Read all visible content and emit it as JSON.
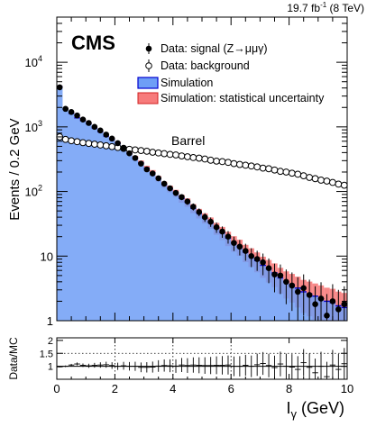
{
  "chart_data": [
    {
      "type": "histogram",
      "panel": "main",
      "title": "",
      "top_right_label": {
        "lumi": "19.7",
        "unit": "fb",
        "sup": "-1",
        "energy": "(8 TeV)"
      },
      "experiment_label": "CMS",
      "region_label": "Barrel",
      "xlabel_main": "I",
      "xlabel_sub": "γ",
      "xlabel_unit": "(GeV)",
      "ylabel": "Events / 0.2 GeV",
      "y_scale": "log",
      "xlim": [
        0,
        10
      ],
      "ylim": [
        1,
        50000
      ],
      "x_ticks": [
        "0",
        "2",
        "4",
        "6",
        "8",
        "10"
      ],
      "y_ticks": [
        {
          "value": 1,
          "label": "1"
        },
        {
          "value": 10,
          "label": "10"
        },
        {
          "value": 100,
          "label": "10",
          "exp": "2"
        },
        {
          "value": 1000,
          "label": "10",
          "exp": "3"
        },
        {
          "value": 10000,
          "label": "10",
          "exp": "4"
        }
      ],
      "legend": {
        "position": "top-right",
        "entries": [
          {
            "marker": "filled-circle",
            "label": "Data: signal (Z→μμγ)"
          },
          {
            "marker": "open-circle",
            "label": "Data: background"
          },
          {
            "marker": "blue-box",
            "label": "Simulation"
          },
          {
            "marker": "red-box",
            "label": "Simulation: statistical uncertainty"
          }
        ]
      },
      "bin_width": 0.2,
      "series": [
        {
          "name": "Simulation",
          "style": "filled-step",
          "color": "#6e9ef6",
          "line_color": "#0000d0",
          "values": [
            4200,
            1900,
            1620,
            1380,
            1250,
            1130,
            960,
            840,
            720,
            640,
            560,
            460,
            390,
            330,
            280,
            230,
            195,
            158,
            128,
            110,
            94,
            78,
            68,
            55,
            46,
            39,
            33,
            27,
            23,
            19,
            16,
            14,
            11.5,
            10,
            8.5,
            7.2,
            6.3,
            5.5,
            4.6,
            4.0,
            3.6,
            3.2,
            2.8,
            2.6,
            2.4,
            2.2,
            2.0,
            1.9,
            1.7,
            1.6
          ],
          "uncertainty_frac": [
            0.03,
            0.04,
            0.04,
            0.04,
            0.04,
            0.05,
            0.05,
            0.05,
            0.06,
            0.06,
            0.06,
            0.07,
            0.07,
            0.08,
            0.08,
            0.09,
            0.1,
            0.1,
            0.11,
            0.12,
            0.13,
            0.14,
            0.15,
            0.16,
            0.17,
            0.18,
            0.2,
            0.21,
            0.23,
            0.25,
            0.27,
            0.28,
            0.3,
            0.32,
            0.34,
            0.36,
            0.38,
            0.4,
            0.43,
            0.45,
            0.47,
            0.5,
            0.53,
            0.55,
            0.57,
            0.6,
            0.62,
            0.64,
            0.66,
            0.68
          ]
        },
        {
          "name": "Data: signal (Z→μμγ)",
          "style": "filled-circle",
          "color": "#000000",
          "values": [
            4100,
            1900,
            1700,
            1500,
            1300,
            1150,
            1000,
            880,
            760,
            660,
            560,
            470,
            390,
            330,
            270,
            220,
            190,
            160,
            132,
            112,
            95,
            82,
            70,
            58,
            48,
            40,
            34,
            28,
            24,
            20,
            16,
            14,
            12,
            10,
            9,
            8,
            6.5,
            5.2,
            5,
            4,
            3.5,
            2.8,
            3.2,
            2.5,
            1.8,
            2.2,
            1.2,
            2.0,
            1.5,
            1.8
          ]
        },
        {
          "name": "Data: background",
          "style": "open-circle",
          "color": "#000000",
          "values": [
            700,
            640,
            610,
            590,
            570,
            555,
            540,
            525,
            510,
            495,
            480,
            465,
            450,
            440,
            430,
            420,
            405,
            395,
            385,
            375,
            368,
            355,
            345,
            335,
            328,
            318,
            305,
            295,
            290,
            282,
            270,
            262,
            255,
            248,
            240,
            230,
            225,
            215,
            205,
            200,
            192,
            185,
            175,
            165,
            158,
            150,
            145,
            138,
            130,
            125
          ]
        }
      ]
    },
    {
      "type": "scatter",
      "panel": "ratio",
      "ylabel": "Data/MC",
      "xlim": [
        0,
        10
      ],
      "ylim": [
        0.5,
        2.1
      ],
      "y_ticks": [
        "1",
        "1.5",
        "2"
      ],
      "x_ticks": [
        "0",
        "2",
        "4",
        "6",
        "8",
        "10"
      ],
      "reference_line": 1,
      "dotted_lines_y": [
        1.5
      ],
      "dotted_lines_x": [
        2,
        4,
        6
      ],
      "values": [
        0.98,
        1.0,
        1.05,
        1.09,
        1.04,
        1.02,
        1.04,
        1.05,
        1.06,
        1.03,
        1.0,
        1.02,
        1.0,
        1.0,
        0.96,
        0.96,
        0.97,
        1.01,
        1.03,
        1.02,
        1.01,
        1.05,
        1.03,
        1.05,
        1.04,
        1.03,
        1.03,
        1.04,
        1.04,
        1.05,
        1.0,
        1.0,
        1.04,
        1.0,
        1.06,
        1.11,
        1.03,
        0.95,
        1.09,
        1.0,
        0.97,
        0.88,
        1.14,
        0.96,
        0.75,
        1.0,
        0.6,
        1.05,
        0.88,
        1.1
      ]
    }
  ]
}
